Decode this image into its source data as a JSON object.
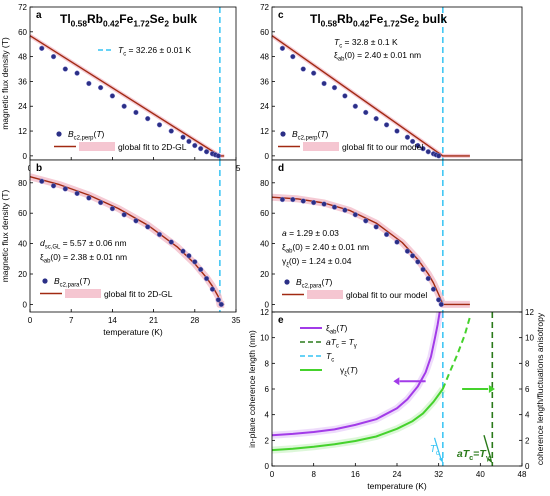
{
  "figure": {
    "colors": {
      "marker": "#2b2f86",
      "fit": "#a12a12",
      "band": "#f2b8c6",
      "tc_line": "#35c3f3",
      "xi": "#a23be8",
      "gamma": "#45d22c",
      "dark_green": "#2a7a1a"
    }
  },
  "chart_data": [
    {
      "id": "a",
      "type": "scatter",
      "panel_label": "a",
      "title": "Tl0.58Rb0.42Fe1.72Se2 bulk",
      "ylabel": "magnetic flux density (T)",
      "xlabel": "",
      "xlim": [
        0,
        35
      ],
      "ylim": [
        -2,
        72
      ],
      "xticks": [
        "0",
        "7",
        "14",
        "21",
        "28",
        "35"
      ],
      "yticks": [
        "0",
        "12",
        "24",
        "36",
        "48",
        "60",
        "72"
      ],
      "annotations": [
        "T_c = 32.26 ± 0.01 K"
      ],
      "legend": [
        "B_c2,perp(T)",
        "global fit to 2D-GL"
      ],
      "tc_line_x": 32.26,
      "series": [
        {
          "name": "B_c2,perp(T)",
          "x": [
            2,
            4,
            6,
            8,
            10,
            12,
            14,
            16,
            18,
            20,
            22,
            24,
            26,
            27,
            28,
            29,
            30,
            31,
            31.5,
            32
          ],
          "y": [
            52,
            48,
            42,
            40,
            35,
            33,
            29,
            24,
            21,
            18,
            15,
            12,
            9,
            7,
            5,
            3.5,
            2,
            1,
            0.5,
            0
          ]
        },
        {
          "name": "global fit to 2D-GL",
          "x": [
            0,
            32.26,
            33
          ],
          "y": [
            58.1,
            0,
            0
          ]
        }
      ]
    },
    {
      "id": "b",
      "type": "scatter",
      "panel_label": "b",
      "ylabel": "magnetic flux density (T)",
      "xlabel": "temperature (K)",
      "xlim": [
        0,
        35
      ],
      "ylim": [
        -5,
        95
      ],
      "xticks": [
        "0",
        "7",
        "14",
        "21",
        "28",
        "35"
      ],
      "yticks": [
        "0",
        "20",
        "40",
        "60",
        "80"
      ],
      "annotations": [
        "d_sc,GL = 5.57 ± 0.06 nm",
        "ξab(0) = 2.38 ± 0.01 nm"
      ],
      "legend": [
        "B_c2,para(T)",
        "global fit to 2D-GL"
      ],
      "tc_line_x": 32.26,
      "series": [
        {
          "name": "B_c2,para(T)",
          "x": [
            2,
            4,
            6,
            8,
            10,
            12,
            14,
            16,
            18,
            20,
            22,
            24,
            26,
            27,
            28,
            29,
            30,
            31,
            32,
            32.5
          ],
          "y": [
            81,
            78,
            76,
            73,
            70,
            67,
            63,
            59,
            55,
            51,
            46,
            41,
            35,
            32,
            28,
            23,
            17,
            10,
            3,
            0
          ]
        },
        {
          "name": "global fit to 2D-GL",
          "x": [
            0,
            5,
            10,
            15,
            20,
            25,
            28,
            30,
            31,
            32,
            32.26,
            33
          ],
          "y": [
            84,
            78.8,
            71.9,
            63.1,
            52.2,
            37.9,
            26.8,
            17.5,
            11.9,
            5.1,
            0,
            0
          ]
        }
      ]
    },
    {
      "id": "c",
      "type": "scatter",
      "panel_label": "c",
      "title": "Tl0.58Rb0.42Fe1.72Se2 bulk",
      "ylabel": "",
      "xlabel": "",
      "xlim": [
        0,
        48
      ],
      "ylim": [
        -2,
        72
      ],
      "xticks": [],
      "yticks": [
        "0",
        "12",
        "24",
        "36",
        "48",
        "60",
        "72"
      ],
      "annotations": [
        "T_c = 32.8 ± 0.1 K",
        "ξab(0) = 2.40 ± 0.01 nm"
      ],
      "legend": [
        "B_c2,perp(T)",
        "global fit to our model"
      ],
      "tc_line_x": 32.8,
      "series": [
        {
          "name": "B_c2,perp(T)",
          "x": [
            2,
            4,
            6,
            8,
            10,
            12,
            14,
            16,
            18,
            20,
            22,
            24,
            26,
            27,
            28,
            29,
            30,
            31,
            31.5,
            32
          ],
          "y": [
            52,
            48,
            42,
            40,
            35,
            33,
            29,
            24,
            21,
            18,
            15,
            12,
            9,
            7,
            5,
            3.5,
            2,
            1,
            0.5,
            0
          ]
        },
        {
          "name": "global fit to our model",
          "x": [
            0,
            32.8,
            38
          ],
          "y": [
            58.1,
            0,
            0
          ]
        }
      ]
    },
    {
      "id": "d",
      "type": "scatter",
      "panel_label": "d",
      "ylabel": "",
      "xlabel": "",
      "xlim": [
        0,
        48
      ],
      "ylim": [
        -5,
        95
      ],
      "xticks": [],
      "yticks": [
        "0",
        "20",
        "40",
        "60",
        "80"
      ],
      "annotations": [
        "a = 1.29 ± 0.03",
        "ξab(0) = 2.40 ± 0.01 nm",
        "γξ(0) = 1.24 ± 0.04"
      ],
      "legend": [
        "B_c2,para(T)",
        "global fit to our model"
      ],
      "tc_line_x": 32.8,
      "series": [
        {
          "name": "B_c2,para(T)",
          "x": [
            2,
            4,
            6,
            8,
            10,
            12,
            14,
            16,
            18,
            20,
            22,
            24,
            26,
            27,
            28,
            29,
            30,
            31,
            32,
            32.5
          ],
          "y": [
            69,
            69,
            68,
            67,
            66,
            64,
            62,
            59,
            55,
            51,
            46,
            41,
            35,
            32,
            28,
            23,
            17,
            10,
            3,
            0
          ]
        },
        {
          "name": "global fit to our model",
          "x": [
            0,
            5,
            10,
            15,
            20,
            25,
            28,
            30,
            31,
            32,
            32.8,
            38
          ],
          "y": [
            70.5,
            69.4,
            66.7,
            61.7,
            53.5,
            40.7,
            29.6,
            20.0,
            14.1,
            6.5,
            0,
            0
          ]
        }
      ]
    },
    {
      "id": "e",
      "type": "line",
      "panel_label": "e",
      "ylabel": "in-plane coherence length (nm)",
      "y2label": "coherence length/fluctuations anisotropy",
      "xlabel": "temperature (K)",
      "xlim": [
        0,
        48
      ],
      "ylim": [
        0,
        12
      ],
      "y2lim": [
        0,
        12
      ],
      "xticks": [
        "0",
        "8",
        "16",
        "24",
        "32",
        "40",
        "48"
      ],
      "yticks": [
        "0",
        "2",
        "4",
        "6",
        "8",
        "10",
        "12"
      ],
      "y2ticks": [
        "0",
        "2",
        "4",
        "6",
        "8",
        "10",
        "12"
      ],
      "legend": [
        "ξab(T)",
        "aTc = Tγ",
        "Tc",
        "γξ(T)"
      ],
      "annotations": [
        "Tc",
        "aTc=Tγ"
      ],
      "vlines": [
        {
          "name": "Tc",
          "x": 32.8
        },
        {
          "name": "aTc = Tγ",
          "x": 42.3
        }
      ],
      "series": [
        {
          "name": "ξab(T)",
          "x": [
            0,
            4,
            8,
            12,
            16,
            20,
            24,
            26,
            28,
            29.5,
            30.5,
            31.3,
            31.8,
            32.2
          ],
          "y": [
            2.4,
            2.5,
            2.65,
            2.85,
            3.2,
            3.65,
            4.5,
            5.2,
            6.2,
            7.3,
            8.5,
            10,
            11,
            12
          ]
        },
        {
          "name": "γξ(T)",
          "x": [
            0,
            4,
            8,
            12,
            16,
            20,
            24,
            27,
            29,
            31,
            32.8,
            34,
            35.5,
            37,
            38
          ],
          "y": [
            1.24,
            1.35,
            1.5,
            1.7,
            1.95,
            2.3,
            2.9,
            3.5,
            4.1,
            5.0,
            6.0,
            7.2,
            8.6,
            10.2,
            11.6
          ]
        }
      ]
    }
  ]
}
